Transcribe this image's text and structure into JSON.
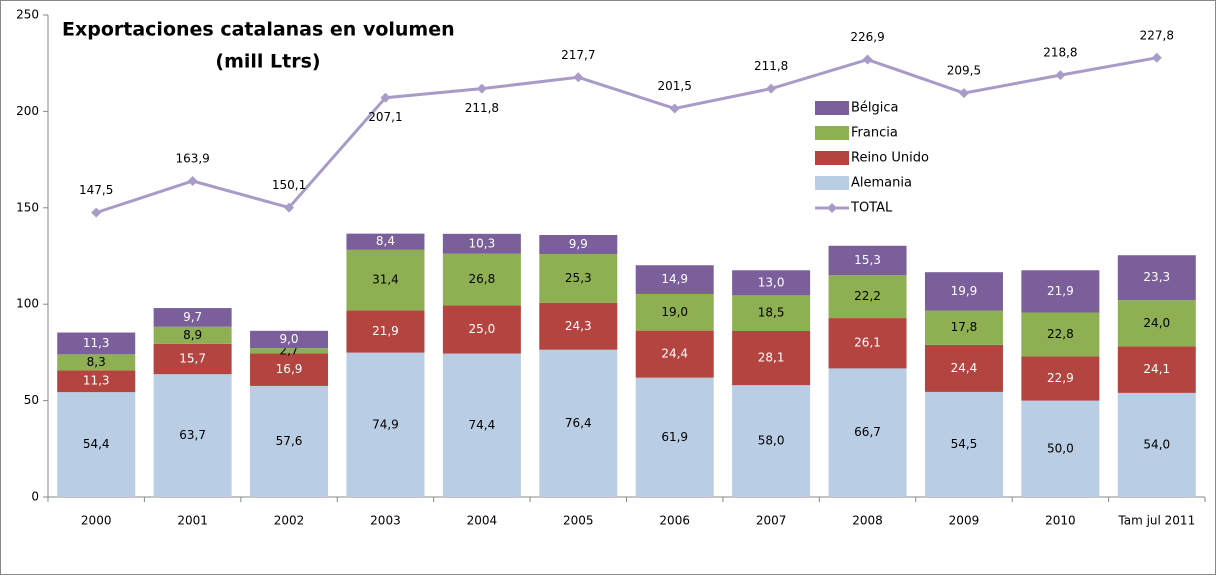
{
  "chart_data": {
    "type": "bar",
    "stacked": true,
    "title": "Exportaciones catalanas en volumen",
    "subtitle": "(mill Ltrs)",
    "categories": [
      "2000",
      "2001",
      "2002",
      "2003",
      "2004",
      "2005",
      "2006",
      "2007",
      "2008",
      "2009",
      "2010",
      "Tam jul 2011"
    ],
    "series": [
      {
        "name": "Alemania",
        "color": "#b9cde5",
        "values": [
          54.4,
          63.7,
          57.6,
          74.9,
          74.4,
          76.4,
          61.9,
          58.0,
          66.7,
          54.5,
          50.0,
          54.0
        ],
        "value_labels": [
          "54,4",
          "63,7",
          "57,6",
          "74,9",
          "74,4",
          "76,4",
          "61,9",
          "58,0",
          "66,7",
          "54,5",
          "50,0",
          "54,0"
        ]
      },
      {
        "name": "Reino Unido",
        "color": "#b4443f",
        "values": [
          11.3,
          15.7,
          16.9,
          21.9,
          25.0,
          24.3,
          24.4,
          28.1,
          26.1,
          24.4,
          22.9,
          24.1
        ],
        "value_labels": [
          "11,3",
          "15,7",
          "16,9",
          "21,9",
          "25,0",
          "24,3",
          "24,4",
          "28,1",
          "26,1",
          "24,4",
          "22,9",
          "24,1"
        ]
      },
      {
        "name": "Francia",
        "color": "#8fb052",
        "values": [
          8.3,
          8.9,
          2.7,
          31.4,
          26.8,
          25.3,
          19.0,
          18.5,
          22.2,
          17.8,
          22.8,
          24.0
        ],
        "value_labels": [
          "8,3",
          "8,9",
          "2,7",
          "31,4",
          "26,8",
          "25,3",
          "19,0",
          "18,5",
          "22,2",
          "17,8",
          "22,8",
          "24,0"
        ]
      },
      {
        "name": "Bélgica",
        "color": "#7b5f9b",
        "values": [
          11.3,
          9.7,
          9.0,
          8.4,
          10.3,
          9.9,
          14.9,
          13.0,
          15.3,
          19.9,
          21.9,
          23.3
        ],
        "value_labels": [
          "11,3",
          "9,7",
          "9,0",
          "8,4",
          "10,3",
          "9,9",
          "14,9",
          "13,0",
          "15,3",
          "19,9",
          "21,9",
          "23,3"
        ]
      },
      {
        "name": "TOTAL",
        "type": "line",
        "color": "#a99bc7",
        "values": [
          147.5,
          163.9,
          150.1,
          207.1,
          211.8,
          217.7,
          201.5,
          211.8,
          226.9,
          209.5,
          218.8,
          227.8
        ],
        "value_labels": [
          "147,5",
          "163,9",
          "150,1",
          "207,1",
          "211,8",
          "217,7",
          "201,5",
          "211,8",
          "226,9",
          "209,5",
          "218,8",
          "227,8"
        ]
      }
    ],
    "ylim": [
      0,
      250
    ],
    "yticks": [
      0,
      50,
      100,
      150,
      200,
      250
    ],
    "legend": "upper-right"
  }
}
